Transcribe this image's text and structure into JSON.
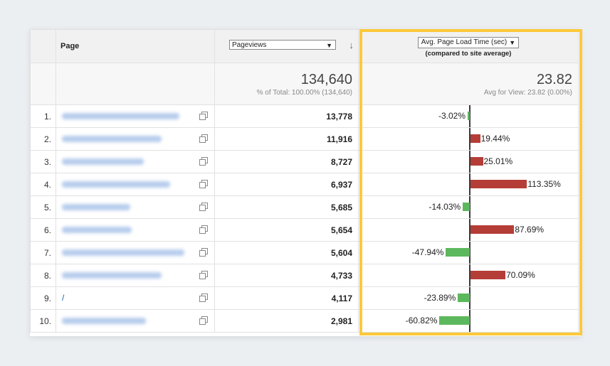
{
  "header": {
    "page_label": "Page",
    "metric_select": "Pageviews",
    "sort_icon": "sort-down-arrow-icon",
    "load_select": "Avg. Page Load Time (sec)",
    "load_subtitle": "(compared to site average)"
  },
  "summary": {
    "pageviews_total": "134,640",
    "pageviews_note": "% of Total: 100.00% (134,640)",
    "load_avg": "23.82",
    "load_note": "Avg for View: 23.82 (0.00%)"
  },
  "colors": {
    "positive_bar": "#b53d37",
    "negative_bar": "#5cb85c",
    "highlight": "#fdc93a"
  },
  "rows": [
    {
      "num": "1.",
      "page": "",
      "pageviews": "13,778",
      "delta": -3.02,
      "delta_label": "-3.02%"
    },
    {
      "num": "2.",
      "page": "",
      "pageviews": "11,916",
      "delta": 19.44,
      "delta_label": "19.44%"
    },
    {
      "num": "3.",
      "page": "",
      "pageviews": "8,727",
      "delta": 25.01,
      "delta_label": "25.01%"
    },
    {
      "num": "4.",
      "page": "",
      "pageviews": "6,937",
      "delta": 113.35,
      "delta_label": "113.35%"
    },
    {
      "num": "5.",
      "page": "",
      "pageviews": "5,685",
      "delta": -14.03,
      "delta_label": "-14.03%"
    },
    {
      "num": "6.",
      "page": "",
      "pageviews": "5,654",
      "delta": 87.69,
      "delta_label": "87.69%"
    },
    {
      "num": "7.",
      "page": "",
      "pageviews": "5,604",
      "delta": -47.94,
      "delta_label": "-47.94%"
    },
    {
      "num": "8.",
      "page": "",
      "pageviews": "4,733",
      "delta": 70.09,
      "delta_label": "70.09%"
    },
    {
      "num": "9.",
      "page": "/",
      "pageviews": "4,117",
      "delta": -23.89,
      "delta_label": "-23.89%"
    },
    {
      "num": "10.",
      "page": "",
      "pageviews": "2,981",
      "delta": -60.82,
      "delta_label": "-60.82%"
    }
  ]
}
